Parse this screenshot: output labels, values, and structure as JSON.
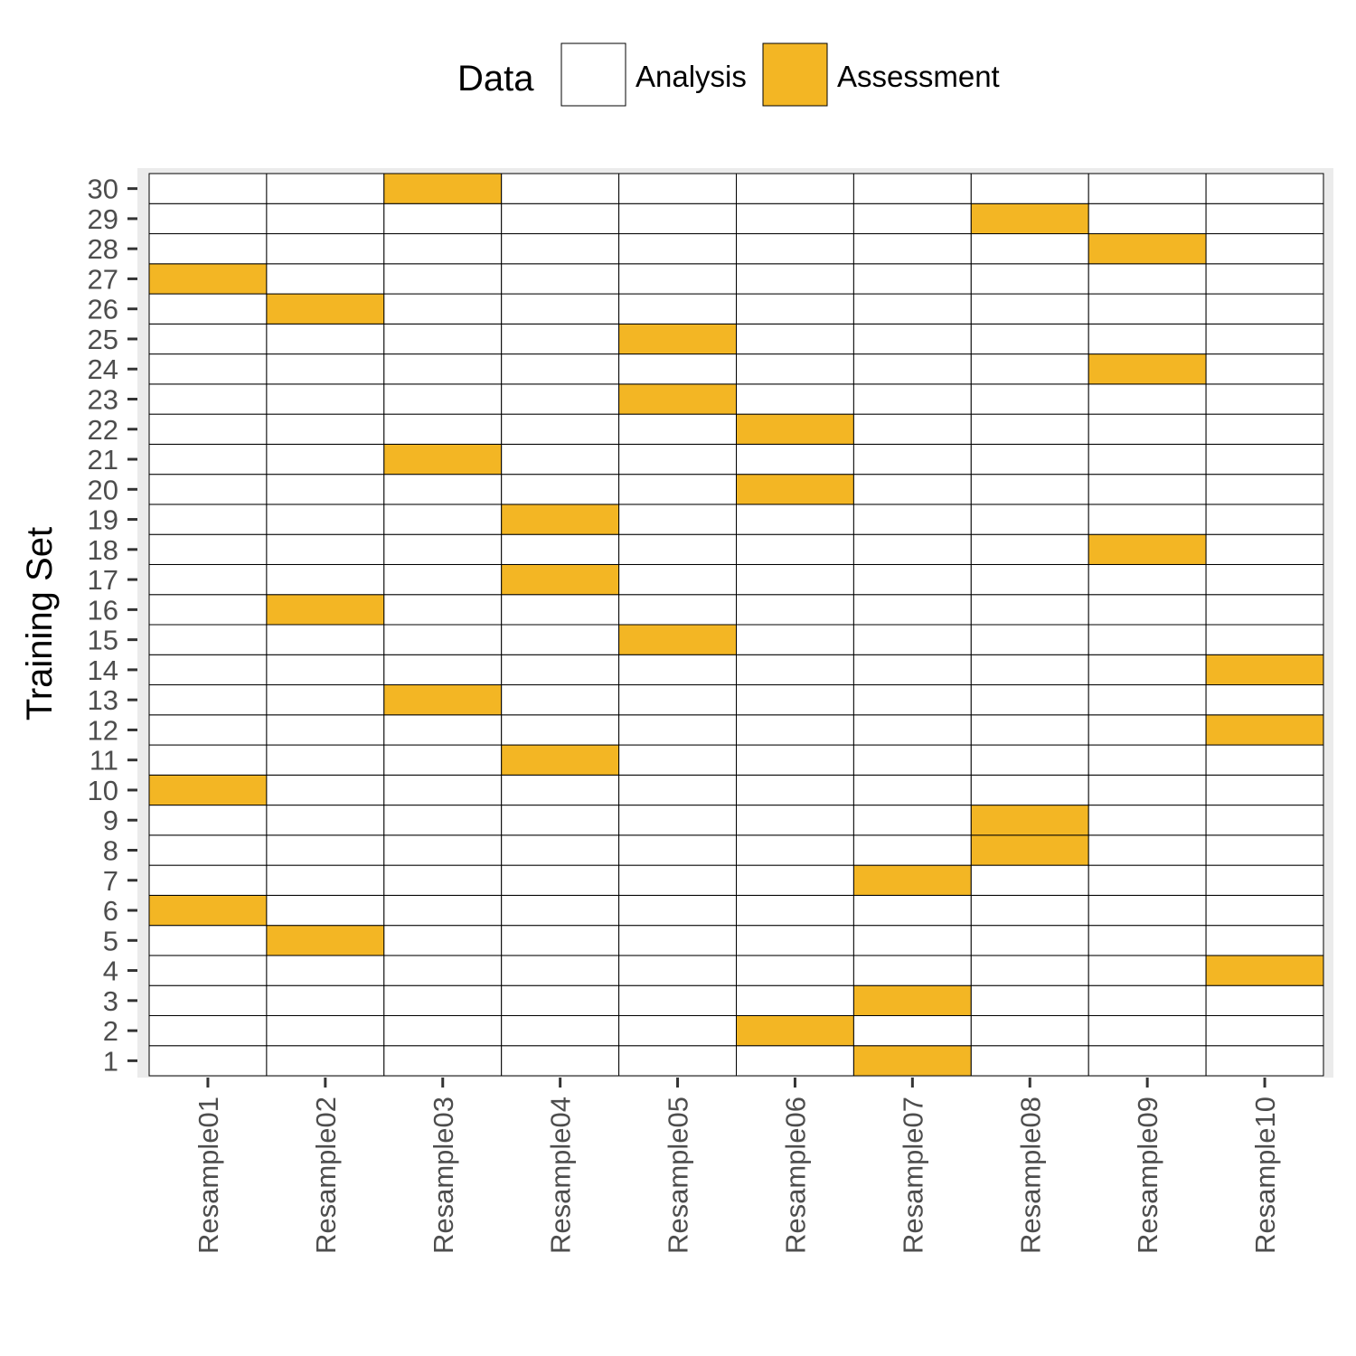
{
  "chart_data": {
    "type": "heatmap",
    "title": "",
    "xlabel": "",
    "ylabel": "Training Set",
    "x_categories": [
      "Resample01",
      "Resample02",
      "Resample03",
      "Resample04",
      "Resample05",
      "Resample06",
      "Resample07",
      "Resample08",
      "Resample09",
      "Resample10"
    ],
    "y_categories": [
      "1",
      "2",
      "3",
      "4",
      "5",
      "6",
      "7",
      "8",
      "9",
      "10",
      "11",
      "12",
      "13",
      "14",
      "15",
      "16",
      "17",
      "18",
      "19",
      "20",
      "21",
      "22",
      "23",
      "24",
      "25",
      "26",
      "27",
      "28",
      "29",
      "30"
    ],
    "legend": {
      "title": "Data",
      "position": "top",
      "entries": [
        {
          "label": "Analysis",
          "color": "#ffffff"
        },
        {
          "label": "Assessment",
          "color": "#f3b624"
        }
      ]
    },
    "assessment": {
      "Resample01": [
        6,
        10,
        27
      ],
      "Resample02": [
        5,
        16,
        26
      ],
      "Resample03": [
        13,
        21,
        30
      ],
      "Resample04": [
        11,
        17,
        19
      ],
      "Resample05": [
        15,
        23,
        25
      ],
      "Resample06": [
        2,
        20,
        22
      ],
      "Resample07": [
        1,
        3,
        7
      ],
      "Resample08": [
        8,
        9,
        29
      ],
      "Resample09": [
        18,
        24,
        28
      ],
      "Resample10": [
        4,
        12,
        14
      ]
    },
    "panel_background": "#ebebeb"
  }
}
